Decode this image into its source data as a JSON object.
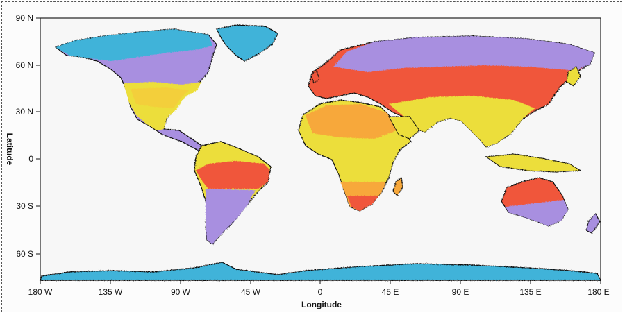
{
  "map": {
    "x_label": "Longitude",
    "y_label": "Latitude",
    "lat_ticks": [
      "90 N",
      "60 N",
      "30 N",
      "0",
      "30 S",
      "60 S"
    ],
    "lon_ticks": [
      "180 W",
      "135 W",
      "90 W",
      "45 W",
      "0",
      "45 E",
      "90 E",
      "135 E",
      "180 E"
    ],
    "colors": {
      "polar_cyan": "#3fb3d9",
      "cold_purple": "#a88fe0",
      "warm_red": "#f0573a",
      "orange": "#f7a83a",
      "hot_yellow": "#ecde3a",
      "coastline": "#111111",
      "ocean": "#f8f8f8"
    }
  }
}
